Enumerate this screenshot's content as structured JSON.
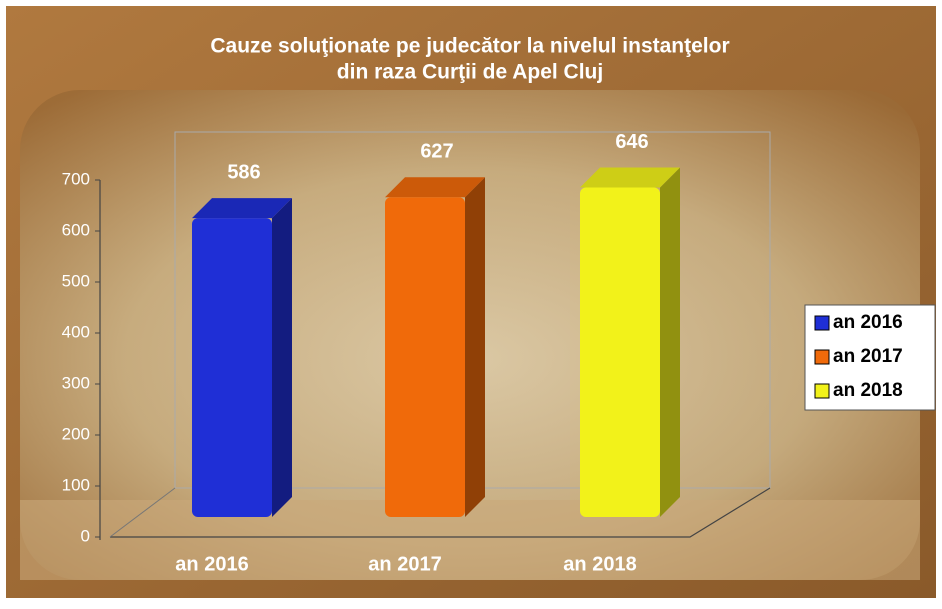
{
  "chart_data": {
    "type": "bar3d",
    "title": [
      "Cauze soluţionate pe judecător la nivelul instanţelor",
      "din raza Curţii de Apel Cluj"
    ],
    "categories": [
      "an 2016",
      "an 2017",
      "an 2018"
    ],
    "values": [
      586,
      627,
      646
    ],
    "colors": [
      "#1f2fd6",
      "#f06a0a",
      "#f2f21a"
    ],
    "ylim": [
      0,
      700
    ],
    "yticks": [
      0,
      100,
      200,
      300,
      400,
      500,
      600,
      700
    ],
    "legend": "right",
    "grid": false
  }
}
